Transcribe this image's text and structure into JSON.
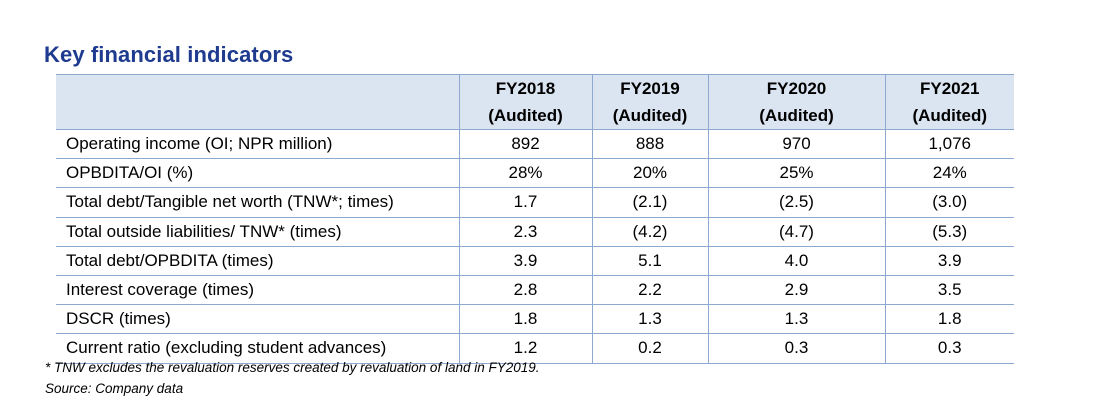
{
  "title": "Key financial indicators",
  "columns": [
    {
      "year": "FY2018",
      "status": "(Audited)"
    },
    {
      "year": "FY2019",
      "status": "(Audited)"
    },
    {
      "year": "FY2020",
      "status": "(Audited)"
    },
    {
      "year": "FY2021",
      "status": "(Audited)"
    }
  ],
  "rows": [
    {
      "label": "Operating income (OI; NPR million)",
      "values": [
        "892",
        "888",
        "970",
        "1,076"
      ]
    },
    {
      "label": "OPBDITA/OI (%)",
      "values": [
        "28%",
        "20%",
        "25%",
        "24%"
      ]
    },
    {
      "label": "Total debt/Tangible net worth (TNW*; times)",
      "values": [
        "1.7",
        "(2.1)",
        "(2.5)",
        "(3.0)"
      ]
    },
    {
      "label": "Total outside liabilities/ TNW* (times)",
      "values": [
        "2.3",
        "(4.2)",
        "(4.7)",
        "(5.3)"
      ]
    },
    {
      "label": "Total debt/OPBDITA (times)",
      "values": [
        "3.9",
        "5.1",
        "4.0",
        "3.9"
      ]
    },
    {
      "label": "Interest coverage (times)",
      "values": [
        "2.8",
        "2.2",
        "2.9",
        "3.5"
      ]
    },
    {
      "label": "DSCR (times)",
      "values": [
        "1.8",
        "1.3",
        "1.3",
        "1.8"
      ]
    },
    {
      "label": "Current ratio (excluding student advances)",
      "values": [
        "1.2",
        "0.2",
        "0.3",
        "0.3"
      ]
    }
  ],
  "footnote": "* TNW excludes the revaluation reserves created by revaluation of land in FY2019.",
  "source": "Source: Company data",
  "colors": {
    "heading": "#1f3b8f",
    "header_fill": "#dbe5f1",
    "rule": "#8ea9cf"
  }
}
